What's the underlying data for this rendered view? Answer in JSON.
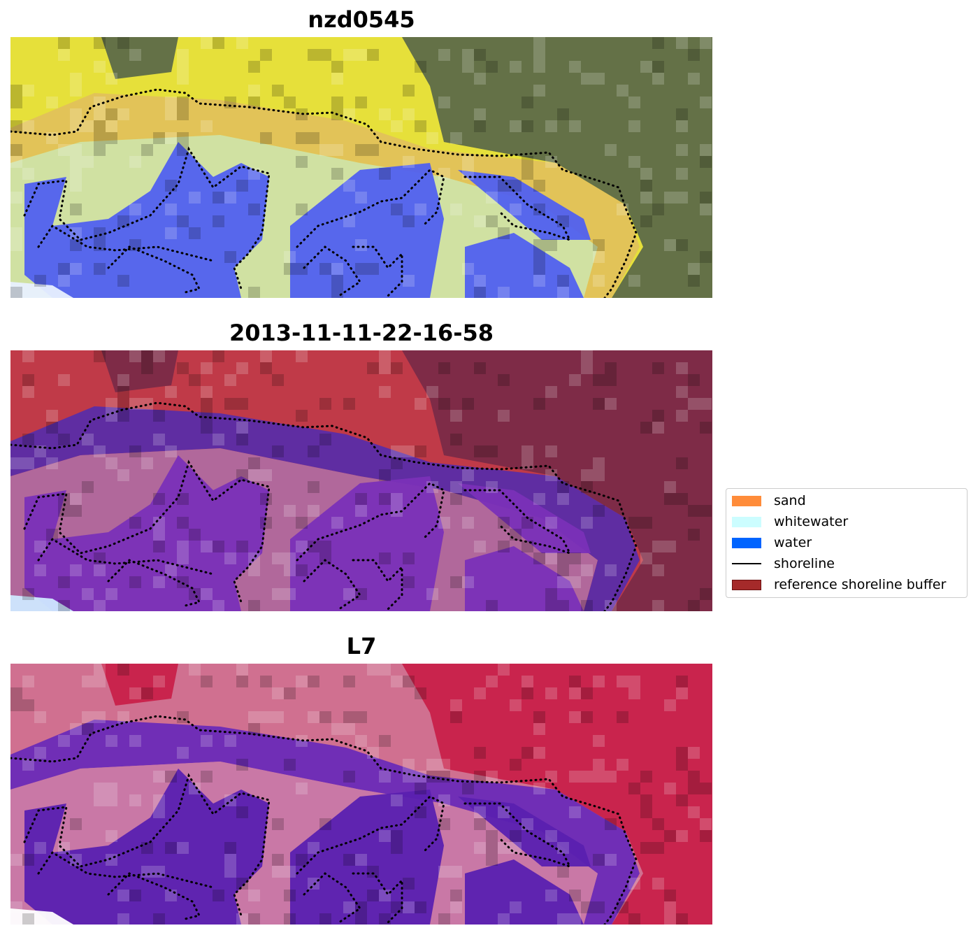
{
  "panels": [
    {
      "title": "nzd0545",
      "style": "rgb"
    },
    {
      "title": "2013-11-11-22-16-58",
      "style": "classified"
    },
    {
      "title": "L7",
      "style": "falsecolor"
    }
  ],
  "legend": {
    "items": [
      {
        "label": "sand",
        "color": "#ff8c3a",
        "kind": "patch"
      },
      {
        "label": "whitewater",
        "color": "#ccfdff",
        "kind": "patch"
      },
      {
        "label": "water",
        "color": "#0064ff",
        "kind": "patch"
      },
      {
        "label": "shoreline",
        "color": "#000000",
        "kind": "line"
      },
      {
        "label": "reference shoreline buffer",
        "color": "#a52a2a",
        "kind": "patch"
      }
    ]
  }
}
